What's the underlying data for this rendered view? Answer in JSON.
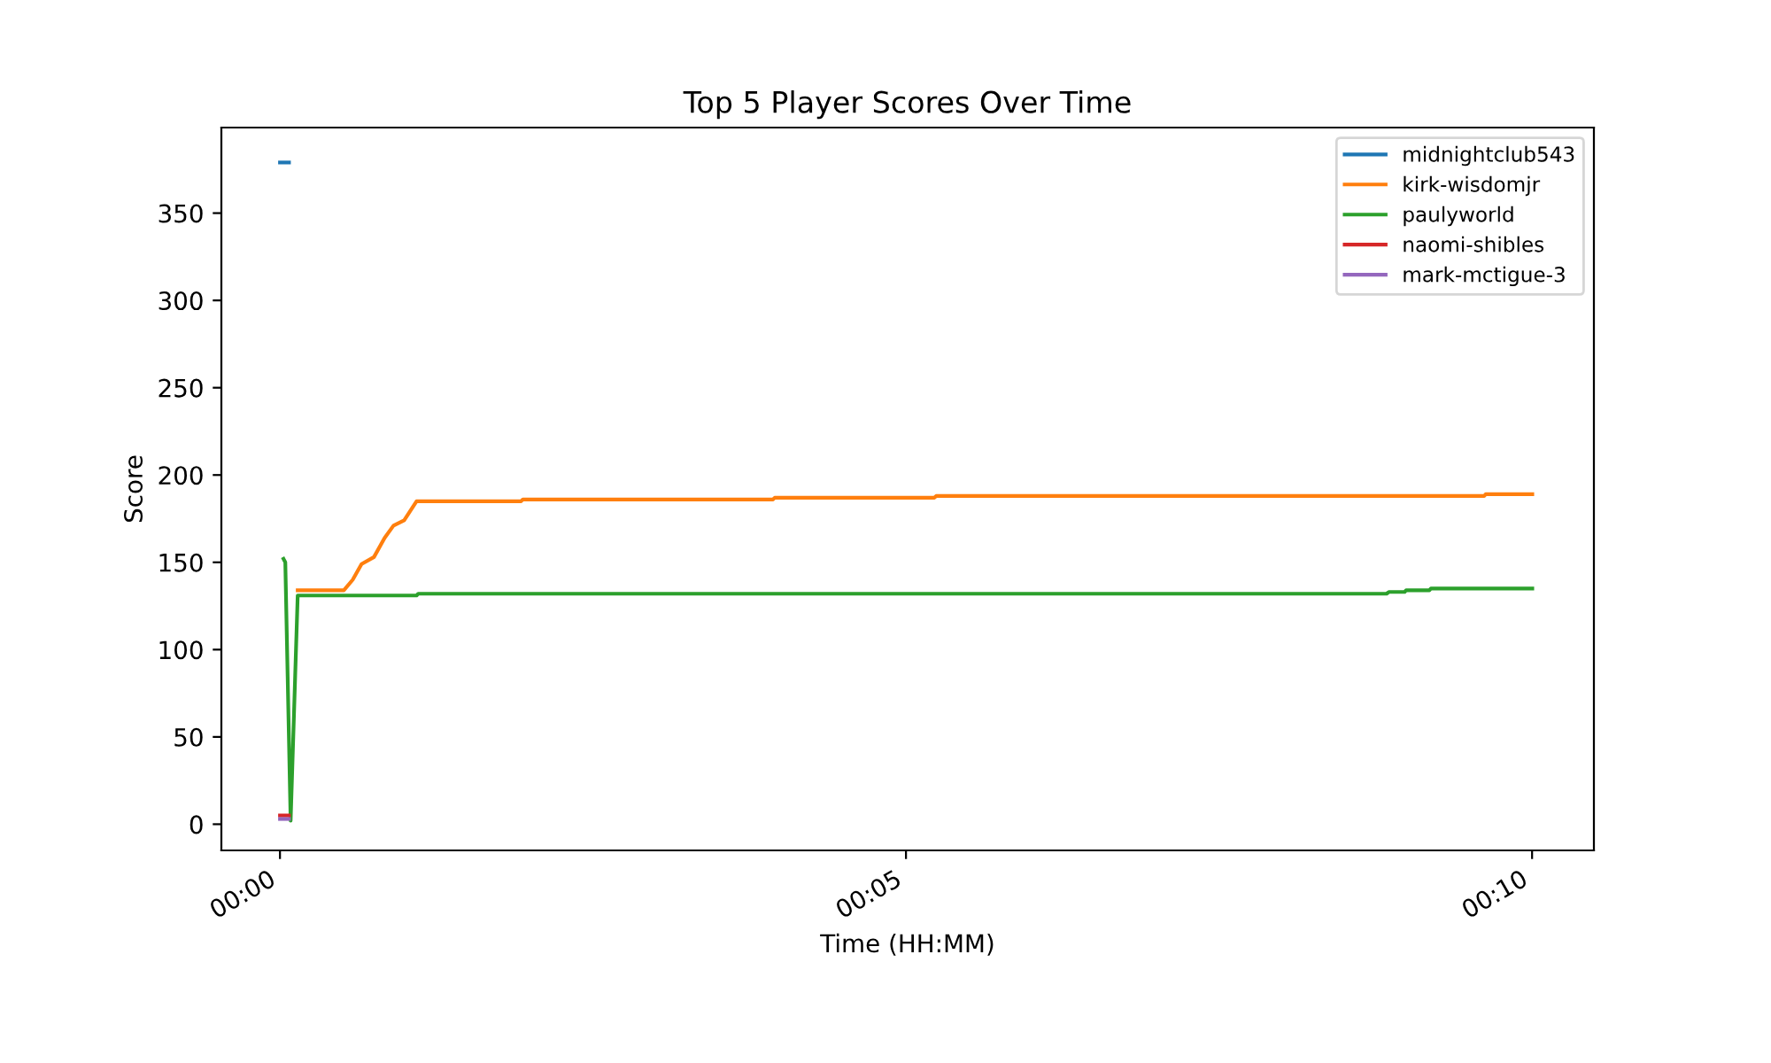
{
  "chart_data": {
    "type": "line",
    "title": "Top 5 Player Scores Over Time",
    "xlabel": "Time (HH:MM)",
    "ylabel": "Score",
    "xlim": [
      -0.0078,
      0.1749
    ],
    "ylim": [
      -15,
      399
    ],
    "xticks": [
      {
        "value": 0,
        "label": "00:00"
      },
      {
        "value": 0.08333,
        "label": "00:05"
      },
      {
        "value": 0.16667,
        "label": "00:10"
      }
    ],
    "yticks": [
      0,
      50,
      100,
      150,
      200,
      250,
      300,
      350
    ],
    "grid": false,
    "legend": "top right",
    "marker": "none",
    "line_style": "solid",
    "series": [
      {
        "name": "midnightclub543",
        "color": "#1f77b4",
        "x": [
          0.0,
          0.0012
        ],
        "values": [
          379,
          379
        ]
      },
      {
        "name": "kirk-wisdomjr",
        "color": "#ff7f0e",
        "x": [
          0.00236,
          0.0085,
          0.00968,
          0.01086,
          0.01251,
          0.01393,
          0.01511,
          0.01653,
          0.01818,
          0.0321,
          0.03234,
          0.06563,
          0.06586,
          0.08711,
          0.08735,
          0.1603,
          0.1605,
          0.1667
        ],
        "values": [
          134,
          134,
          140,
          149,
          153,
          164,
          171,
          174,
          185,
          185,
          186,
          186,
          187,
          187,
          188,
          188,
          189,
          189
        ]
      },
      {
        "name": "paulyworld",
        "color": "#2ca02c",
        "x": [
          0.00047,
          0.00071,
          0.00142,
          0.00236,
          0.01818,
          0.01841,
          0.1473,
          0.1476,
          0.1497,
          0.1499,
          0.153,
          0.1532,
          0.1667
        ],
        "values": [
          152,
          150,
          2,
          131,
          131,
          132,
          132,
          133,
          133,
          134,
          134,
          135,
          135
        ]
      },
      {
        "name": "naomi-shibles",
        "color": "#d62728",
        "x": [
          0.0,
          0.0012
        ],
        "values": [
          5,
          5
        ]
      },
      {
        "name": "mark-mctigue-3",
        "color": "#9467bd",
        "x": [
          0.0,
          0.0012
        ],
        "values": [
          3,
          3
        ]
      }
    ]
  }
}
